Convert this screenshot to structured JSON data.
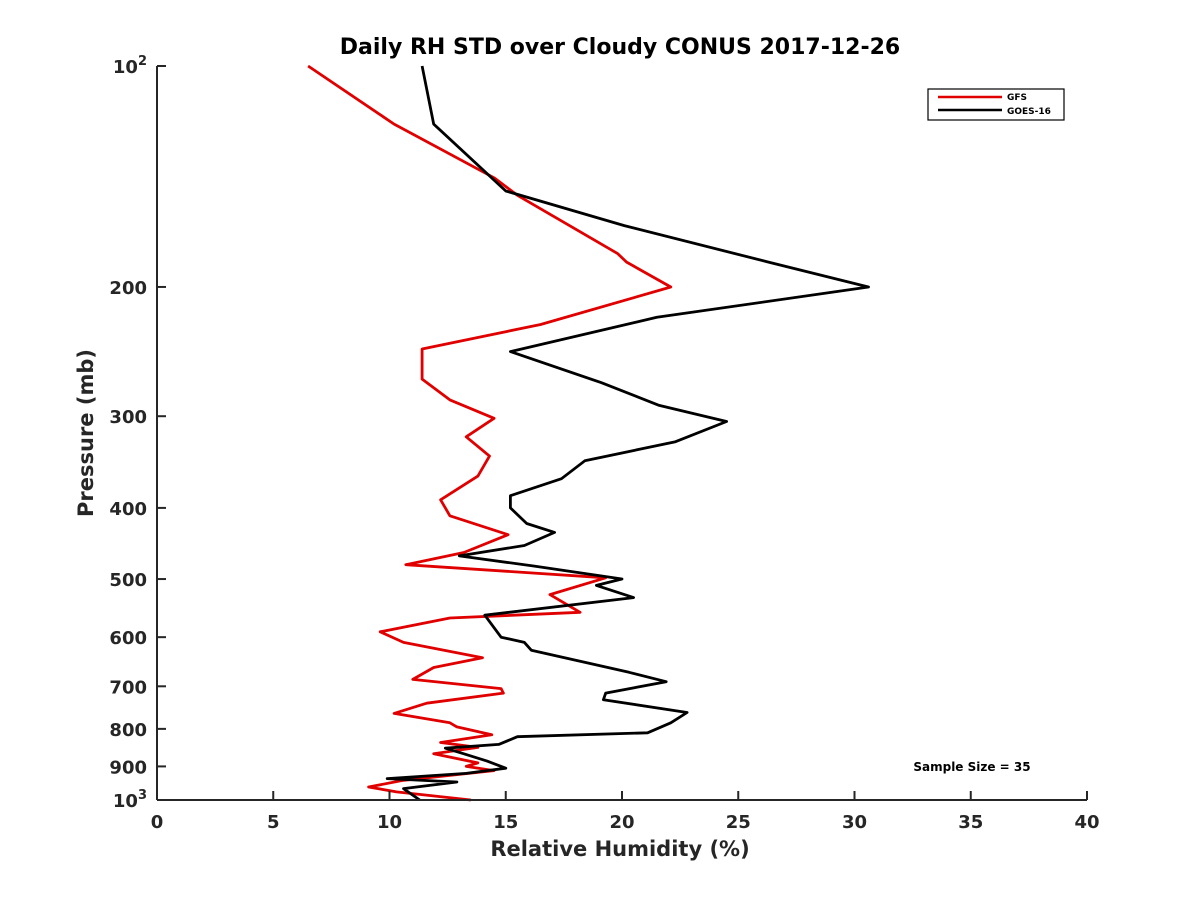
{
  "chart_data": {
    "type": "line",
    "title": "Daily RH STD over Cloudy CONUS 2017-12-26",
    "xlabel": "Relative Humidity (%)",
    "ylabel": "Pressure (mb)",
    "xlim": [
      0,
      40
    ],
    "ylim": [
      100,
      1000
    ],
    "yscale": "log",
    "y_reversed": true,
    "x_ticks": [
      0,
      5,
      10,
      15,
      20,
      25,
      30,
      35,
      40
    ],
    "x_tick_labels": [
      "0",
      "5",
      "10",
      "15",
      "20",
      "25",
      "30",
      "35",
      "40"
    ],
    "y_ticks": [
      {
        "value": 100,
        "base": "10",
        "exp": "2"
      },
      {
        "value": 200,
        "base": "200",
        "exp": ""
      },
      {
        "value": 300,
        "base": "300",
        "exp": ""
      },
      {
        "value": 400,
        "base": "400",
        "exp": ""
      },
      {
        "value": 500,
        "base": "500",
        "exp": ""
      },
      {
        "value": 600,
        "base": "600",
        "exp": ""
      },
      {
        "value": 700,
        "base": "700",
        "exp": ""
      },
      {
        "value": 800,
        "base": "800",
        "exp": ""
      },
      {
        "value": 900,
        "base": "900",
        "exp": ""
      },
      {
        "value": 1000,
        "base": "10",
        "exp": "3"
      }
    ],
    "legend_position": "top-right",
    "annotation": "Sample Size = 35",
    "series": [
      {
        "name": "GFS",
        "color": "#e00000",
        "points": [
          [
            6.5,
            100
          ],
          [
            10.2,
            120
          ],
          [
            14.5,
            142
          ],
          [
            15.5,
            150
          ],
          [
            19.8,
            180
          ],
          [
            20.2,
            185
          ],
          [
            22.1,
            200
          ],
          [
            16.5,
            225
          ],
          [
            11.4,
            243
          ],
          [
            11.4,
            267
          ],
          [
            12.6,
            285
          ],
          [
            14.5,
            302
          ],
          [
            13.3,
            320
          ],
          [
            14.3,
            340
          ],
          [
            13.8,
            362
          ],
          [
            12.2,
            390
          ],
          [
            12.6,
            410
          ],
          [
            15.1,
            435
          ],
          [
            13.2,
            460
          ],
          [
            10.7,
            478
          ],
          [
            19.3,
            498
          ],
          [
            16.9,
            525
          ],
          [
            18.2,
            555
          ],
          [
            12.6,
            565
          ],
          [
            9.6,
            590
          ],
          [
            10.6,
            610
          ],
          [
            14.0,
            640
          ],
          [
            11.9,
            660
          ],
          [
            11.0,
            685
          ],
          [
            14.8,
            705
          ],
          [
            14.9,
            715
          ],
          [
            11.6,
            738
          ],
          [
            10.2,
            762
          ],
          [
            12.6,
            785
          ],
          [
            12.9,
            795
          ],
          [
            14.4,
            815
          ],
          [
            12.2,
            835
          ],
          [
            13.8,
            848
          ],
          [
            11.9,
            865
          ],
          [
            13.8,
            890
          ],
          [
            13.3,
            900
          ],
          [
            14.5,
            912
          ],
          [
            10.6,
            940
          ],
          [
            9.1,
            960
          ],
          [
            10.3,
            975
          ],
          [
            13.5,
            1000
          ]
        ]
      },
      {
        "name": "GOES-16",
        "color": "#000000",
        "points": [
          [
            11.4,
            100
          ],
          [
            11.9,
            120
          ],
          [
            15.0,
            148
          ],
          [
            20.1,
            165
          ],
          [
            26.3,
            185
          ],
          [
            30.6,
            200
          ],
          [
            21.5,
            220
          ],
          [
            15.2,
            245
          ],
          [
            19.1,
            270
          ],
          [
            21.6,
            290
          ],
          [
            24.5,
            305
          ],
          [
            22.3,
            325
          ],
          [
            18.4,
            345
          ],
          [
            17.4,
            365
          ],
          [
            15.2,
            385
          ],
          [
            15.2,
            400
          ],
          [
            15.9,
            420
          ],
          [
            17.1,
            432
          ],
          [
            15.8,
            450
          ],
          [
            13.0,
            465
          ],
          [
            16.2,
            480
          ],
          [
            20.0,
            500
          ],
          [
            18.9,
            510
          ],
          [
            20.5,
            530
          ],
          [
            14.1,
            560
          ],
          [
            14.8,
            600
          ],
          [
            15.8,
            610
          ],
          [
            16.1,
            625
          ],
          [
            20.3,
            670
          ],
          [
            21.9,
            690
          ],
          [
            19.3,
            715
          ],
          [
            19.2,
            730
          ],
          [
            22.8,
            760
          ],
          [
            22.1,
            785
          ],
          [
            21.1,
            810
          ],
          [
            15.5,
            820
          ],
          [
            14.7,
            840
          ],
          [
            12.4,
            850
          ],
          [
            13.2,
            865
          ],
          [
            14.2,
            885
          ],
          [
            15.0,
            905
          ],
          [
            13.3,
            920
          ],
          [
            9.9,
            935
          ],
          [
            12.9,
            945
          ],
          [
            10.6,
            965
          ],
          [
            11.3,
            1000
          ]
        ]
      }
    ]
  }
}
